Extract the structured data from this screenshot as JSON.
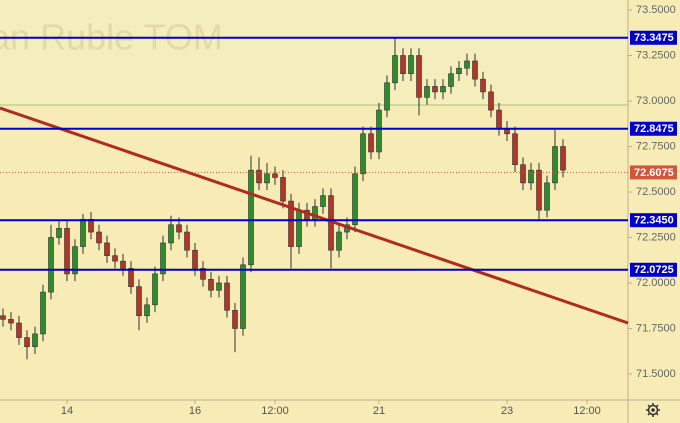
{
  "chart_data": {
    "type": "candlestick",
    "watermark": "Russian Ruble TOM",
    "categories": [
      null,
      null,
      null,
      null,
      null,
      null,
      null,
      null,
      "14",
      null,
      null,
      null,
      null,
      null,
      null,
      null,
      null,
      null,
      null,
      null,
      null,
      null,
      null,
      null,
      "16",
      null,
      null,
      null,
      null,
      null,
      null,
      null,
      null,
      null,
      "12:00",
      null,
      null,
      null,
      null,
      null,
      null,
      null,
      null,
      null,
      null,
      null,
      null,
      "21",
      null,
      null,
      null,
      null,
      null,
      null,
      null,
      null,
      null,
      null,
      null,
      null,
      null,
      null,
      null,
      "23",
      null,
      null,
      null,
      null,
      null,
      null,
      null,
      null,
      null,
      "12:00"
    ],
    "open": [
      71.82,
      71.8,
      71.78,
      71.7,
      71.65,
      71.72,
      71.95,
      72.25,
      72.3,
      72.05,
      72.2,
      72.35,
      72.28,
      72.22,
      72.15,
      72.12,
      72.08,
      71.98,
      71.82,
      71.88,
      72.05,
      72.22,
      72.32,
      72.28,
      72.18,
      72.08,
      72.02,
      71.96,
      72.0,
      71.85,
      71.75,
      72.1,
      72.62,
      72.55,
      72.6,
      72.58,
      72.45,
      72.2,
      72.4,
      72.35,
      72.42,
      72.48,
      72.18,
      72.28,
      72.32,
      72.6,
      72.82,
      72.72,
      72.95,
      73.1,
      73.25,
      73.15,
      73.25,
      73.02,
      73.08,
      73.05,
      73.08,
      73.15,
      73.18,
      73.22,
      73.12,
      73.05,
      72.95,
      72.85,
      72.82,
      72.65,
      72.55,
      72.62,
      72.4,
      72.55,
      72.75,
      null,
      null,
      null
    ],
    "high": [
      71.86,
      71.84,
      71.82,
      71.74,
      71.76,
      71.99,
      72.32,
      72.34,
      72.34,
      72.24,
      72.38,
      72.39,
      72.32,
      72.26,
      72.19,
      72.16,
      72.12,
      72.02,
      71.92,
      72.09,
      72.26,
      72.37,
      72.36,
      72.32,
      72.22,
      72.12,
      72.06,
      72.04,
      72.04,
      71.89,
      72.14,
      72.7,
      72.69,
      72.66,
      72.64,
      72.62,
      72.49,
      72.44,
      72.44,
      72.46,
      72.52,
      72.52,
      72.32,
      72.36,
      72.64,
      72.86,
      72.86,
      72.99,
      73.14,
      73.35,
      73.29,
      73.29,
      73.29,
      73.12,
      73.12,
      73.12,
      73.19,
      73.22,
      73.26,
      73.26,
      73.16,
      73.09,
      72.99,
      72.89,
      72.86,
      72.69,
      72.66,
      72.66,
      72.59,
      72.84,
      72.79,
      null,
      null,
      null
    ],
    "low": [
      71.76,
      71.74,
      71.66,
      71.58,
      71.61,
      71.68,
      71.91,
      72.21,
      72.01,
      72.01,
      72.16,
      72.24,
      72.18,
      72.11,
      72.08,
      72.04,
      71.94,
      71.74,
      71.78,
      71.84,
      72.01,
      72.18,
      72.24,
      72.14,
      72.04,
      71.98,
      71.92,
      71.92,
      71.81,
      71.62,
      71.71,
      72.06,
      72.51,
      72.51,
      72.54,
      72.41,
      72.08,
      72.16,
      72.31,
      72.31,
      72.38,
      72.08,
      72.14,
      72.24,
      72.28,
      72.56,
      72.68,
      72.68,
      72.91,
      73.06,
      73.11,
      73.11,
      72.92,
      72.98,
      73.01,
      73.01,
      73.04,
      73.11,
      73.14,
      73.08,
      73.01,
      72.91,
      72.81,
      72.78,
      72.61,
      72.51,
      72.51,
      72.35,
      72.36,
      72.51,
      72.58,
      null,
      null,
      null
    ],
    "close": [
      71.8,
      71.78,
      71.7,
      71.65,
      71.72,
      71.95,
      72.25,
      72.3,
      72.05,
      72.2,
      72.35,
      72.28,
      72.22,
      72.15,
      72.12,
      72.08,
      71.98,
      71.82,
      71.88,
      72.05,
      72.22,
      72.32,
      72.28,
      72.18,
      72.08,
      72.02,
      71.96,
      72.0,
      71.85,
      71.75,
      72.1,
      72.62,
      72.55,
      72.6,
      72.58,
      72.45,
      72.2,
      72.4,
      72.35,
      72.42,
      72.48,
      72.18,
      72.28,
      72.32,
      72.6,
      72.82,
      72.72,
      72.95,
      73.1,
      73.25,
      73.15,
      73.25,
      73.02,
      73.08,
      73.05,
      73.08,
      73.15,
      73.18,
      73.22,
      73.12,
      73.05,
      72.95,
      72.85,
      72.82,
      72.65,
      72.55,
      72.62,
      72.4,
      72.55,
      72.75,
      72.62,
      null,
      null,
      null
    ],
    "up_color": "#2e8b2e",
    "down_color": "#b0362a",
    "ylim": [
      71.357,
      73.555
    ],
    "yticks": [
      {
        "value": 71.5,
        "label": "71.5000"
      },
      {
        "value": 71.75,
        "label": "71.7500"
      },
      {
        "value": 72.0,
        "label": "72.0000"
      },
      {
        "value": 72.25,
        "label": "72.2500"
      },
      {
        "value": 72.5,
        "label": "72.5000"
      },
      {
        "value": 72.75,
        "label": "72.7500"
      },
      {
        "value": 73.0,
        "label": "73.0000"
      },
      {
        "value": 73.25,
        "label": "73.2500"
      },
      {
        "value": 73.5,
        "label": "73.5000"
      }
    ],
    "levels": [
      {
        "value": 73.3475,
        "label": "73.3475",
        "color": "#0000cc",
        "style": "solid"
      },
      {
        "value": 72.8475,
        "label": "72.8475",
        "color": "#0000cc",
        "style": "solid"
      },
      {
        "value": 72.345,
        "label": "72.3450",
        "color": "#0000cc",
        "style": "solid"
      },
      {
        "value": 72.0725,
        "label": "72.0725",
        "color": "#0000cc",
        "style": "solid"
      },
      {
        "value": 72.6075,
        "label": "72.6075",
        "color": "#d2553c",
        "style": "dotted"
      }
    ]
  }
}
